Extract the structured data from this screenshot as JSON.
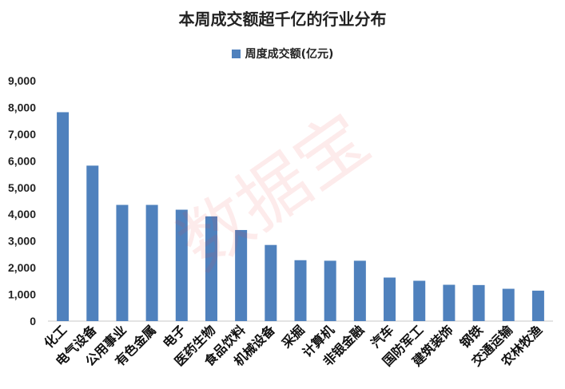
{
  "chart_data": {
    "type": "bar",
    "title": "本周成交额超千亿的行业分布",
    "xlabel": "",
    "ylabel": "",
    "ylim": [
      0,
      9000
    ],
    "yticks": [
      "0",
      "1,000",
      "2,000",
      "3,000",
      "4,000",
      "5,000",
      "6,000",
      "7,000",
      "8,000",
      "9,000"
    ],
    "legend_position": "top",
    "grid": false,
    "categories": [
      "化工",
      "电气设备",
      "公用事业",
      "有色金属",
      "电子",
      "医药生物",
      "食品饮料",
      "机械设备",
      "采掘",
      "计算机",
      "非银金融",
      "汽车",
      "国防军工",
      "建筑装饰",
      "钢铁",
      "交通运输",
      "农林牧渔"
    ],
    "series": [
      {
        "name": "周度成交额(亿元)",
        "color": "#4f81bd",
        "values": [
          7820,
          5820,
          4350,
          4350,
          4170,
          3920,
          3410,
          2850,
          2280,
          2260,
          2260,
          1630,
          1510,
          1360,
          1350,
          1210,
          1140
        ]
      }
    ]
  },
  "watermark": {
    "text": "数据宝",
    "color": "#eb4646"
  }
}
